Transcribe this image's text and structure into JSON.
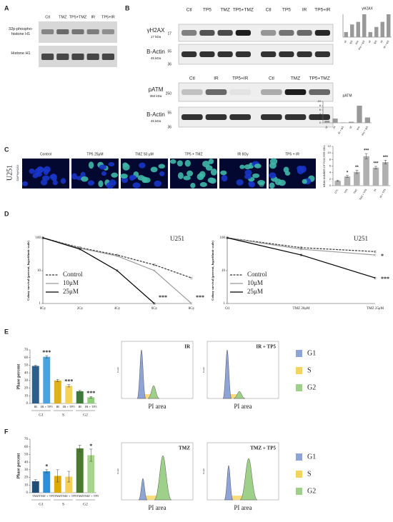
{
  "panel_labels": [
    "A",
    "B",
    "C",
    "D",
    "E",
    "F"
  ],
  "blot_a": {
    "lanes": [
      "Ctl",
      "TMZ",
      "TP5+TMZ",
      "IR",
      "TP5+IR"
    ],
    "rows": [
      "32p-phospho-histone H1",
      "Histone H1"
    ]
  },
  "blot_b": [
    {
      "lanes": [
        "Ctl",
        "TP5",
        "TMZ",
        "TP5+TMZ",
        "Ctl",
        "TP5",
        "IR",
        "TP5+IR"
      ],
      "target": "γH2AX",
      "target_size": "17 kDa",
      "loading": "B-Actin",
      "loading_size": "45 kDa",
      "markers": [
        "17",
        "55",
        "36"
      ]
    },
    {
      "lanes": [
        "Ctl",
        "IR",
        "TP5+IR",
        "Ctl",
        "TMZ",
        "TP5+TMZ"
      ],
      "target": "pATM",
      "target_size": "350 kDa",
      "loading": "B-Actin",
      "loading_size": "45 kDa",
      "markers": [
        "250",
        "55",
        "36"
      ]
    }
  ],
  "micrographs": {
    "cell_line": "U251",
    "stain": "DAPI/γH2AX",
    "conditions": [
      "Control",
      "TP5 25μM",
      "TMZ 50 μM",
      "TP5 + TMZ",
      "IR 6Gy",
      "TP5 + IR"
    ],
    "scale_bar": "20μm"
  },
  "flow": {
    "panels": [
      "IR",
      "IR + TP5",
      "TMZ",
      "TMZ + TP5"
    ],
    "x_label": "PI area",
    "y_label": "Count",
    "phases": [
      {
        "name": "G1",
        "color": "#8ea3d6"
      },
      {
        "name": "S",
        "color": "#f4d35e"
      },
      {
        "name": "G2",
        "color": "#9fd08a"
      }
    ]
  },
  "chart_data": [
    {
      "type": "bar",
      "title": "γH2AX",
      "categories": [
        "ctl",
        "tp5",
        "tmz",
        "tmz + tp5",
        "ctl",
        "tp5",
        "IR",
        "IR + tp5"
      ],
      "values": [
        1,
        2.5,
        3,
        4.5,
        1,
        2,
        3,
        4.5
      ],
      "color": "#999999"
    },
    {
      "type": "bar",
      "title": "pATM",
      "categories": [
        "ctl",
        "IR",
        "IR + tp5",
        "ctl",
        "tmz",
        "tmz + tp5"
      ],
      "values": [
        1,
        2,
        0.2,
        0.5,
        8,
        2.5
      ],
      "color": "#999999",
      "ylim": [
        0,
        10
      ],
      "yticks": [
        0,
        2,
        4,
        6,
        8,
        10
      ]
    },
    {
      "type": "bar",
      "y_label": "MEAN NUMBER OF FOCI PER CELL",
      "categories": [
        "CTL",
        "TP5",
        "TMZ",
        "TMZ + TP5",
        "IR",
        "IR + TP5"
      ],
      "values": [
        1.5,
        2.8,
        4.2,
        9,
        5.5,
        7.2
      ],
      "errors": [
        0.2,
        0.3,
        0.5,
        0.8,
        0.4,
        0.6
      ],
      "significance": [
        null,
        "*",
        "**",
        "***",
        "***",
        "***"
      ],
      "color": "#b0b0b0",
      "ylim": [
        0,
        12
      ],
      "yticks": [
        0,
        2,
        4,
        6,
        8,
        10,
        12
      ]
    },
    {
      "type": "line",
      "title": "U251",
      "y_label": "Colony survival (percent, logarithmic scale)",
      "categories": [
        "0Gy",
        "2Gy",
        "4Gy",
        "6Gy",
        "8Gy"
      ],
      "log_y": true,
      "ylim": [
        1,
        100
      ],
      "yticks": [
        1,
        10,
        100
      ],
      "series": [
        {
          "name": "Control",
          "color": "#333333",
          "style": "dashed",
          "values": [
            100,
            50,
            30,
            15,
            6
          ]
        },
        {
          "name": "10μM",
          "color": "#999999",
          "style": "solid",
          "values": [
            100,
            48,
            28,
            10,
            1
          ]
        },
        {
          "name": "25μM",
          "color": "#000000",
          "style": "solid",
          "values": [
            100,
            45,
            10,
            1,
            null
          ]
        }
      ],
      "annotations": [
        "***",
        "***"
      ]
    },
    {
      "type": "line",
      "title": "U251",
      "y_label": "Colony survival (percent, logarithmic scale)",
      "categories": [
        "Ctl",
        "TMZ 20μM",
        "TMZ 25μM"
      ],
      "log_y": true,
      "ylim": [
        1,
        100
      ],
      "yticks": [
        1,
        10,
        100
      ],
      "series": [
        {
          "name": "Control",
          "color": "#333333",
          "style": "dashed",
          "values": [
            100,
            50,
            38
          ]
        },
        {
          "name": "10μM",
          "color": "#999999",
          "style": "solid",
          "values": [
            100,
            45,
            30
          ]
        },
        {
          "name": "25μM",
          "color": "#000000",
          "style": "solid",
          "values": [
            100,
            30,
            6
          ]
        }
      ],
      "annotations": [
        "*",
        "***"
      ]
    },
    {
      "type": "bar",
      "y_label": "Phase percent",
      "categories": [
        "IR",
        "IR + TP5",
        "IR",
        "IR + TP5",
        "IR",
        "IR + TP5"
      ],
      "groups": [
        "G1",
        "S",
        "G2"
      ],
      "values": [
        49,
        61,
        30,
        23,
        16,
        8
      ],
      "errors": [
        1,
        1.5,
        1.5,
        1.5,
        1,
        1
      ],
      "significance": [
        null,
        "***",
        null,
        "***",
        null,
        "***"
      ],
      "colors": [
        "#2e5e8c",
        "#4aa3df",
        "#e0b020",
        "#f5d35a",
        "#3c7a3c",
        "#8fcf7a"
      ],
      "ylim": [
        0,
        70
      ],
      "yticks": [
        0,
        10,
        20,
        30,
        40,
        50,
        60,
        70
      ]
    },
    {
      "type": "bar",
      "y_label": "Phase percent",
      "categories": [
        "TMZ",
        "TMZ + TP5",
        "TMZ",
        "TMZ + TP5",
        "TMZ",
        "TMZ + TP5"
      ],
      "groups": [
        "G1",
        "S",
        "G2"
      ],
      "values": [
        15,
        28,
        22,
        21,
        58,
        49
      ],
      "errors": [
        2,
        2,
        8,
        7,
        4,
        8
      ],
      "significance": [
        null,
        "*",
        null,
        null,
        null,
        "*"
      ],
      "colors": [
        "#1f4e79",
        "#2e8fd6",
        "#e0a800",
        "#f5cf5a",
        "#4a7a2e",
        "#a8d48a"
      ],
      "ylim": [
        0,
        70
      ],
      "yticks": [
        0,
        10,
        20,
        30,
        40,
        50,
        60,
        70
      ]
    }
  ]
}
